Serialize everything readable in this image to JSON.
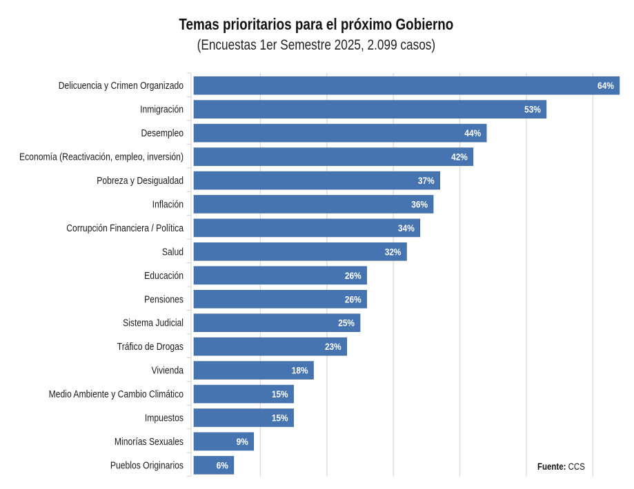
{
  "chart_data": {
    "type": "bar",
    "orientation": "horizontal",
    "title": "Temas prioritarios para el próximo Gobierno",
    "subtitle": "(Encuestas 1er Semestre 2025, 2.099 casos)",
    "categories": [
      "Delicuencia y Crimen Organizado",
      "Inmigración",
      "Desempleo",
      "Economía (Reactivación, empleo, inversión)",
      "Pobreza y Desigualdad",
      "Inflación",
      "Corrupción Financiera / Política",
      "Salud",
      "Educación",
      "Pensiones",
      "Sistema Judicial",
      "Tráfico de Drogas",
      "Vivienda",
      "Medio Ambiente y Cambio Climático",
      "Impuestos",
      "Minorías Sexuales",
      "Pueblos Originarios"
    ],
    "values": [
      64,
      53,
      44,
      42,
      37,
      36,
      34,
      32,
      26,
      26,
      25,
      23,
      18,
      15,
      15,
      9,
      6
    ],
    "data_labels": [
      "64%",
      "53%",
      "44%",
      "42%",
      "37%",
      "36%",
      "34%",
      "32%",
      "26%",
      "26%",
      "25%",
      "23%",
      "18%",
      "15%",
      "15%",
      "9%",
      "6%"
    ],
    "xlim": [
      0,
      66
    ],
    "grid_step": 10,
    "grid": true,
    "xlabel": "",
    "ylabel": "",
    "bar_color": "#4674b0",
    "source_label": "Fuente:",
    "source_value": "CCS"
  }
}
